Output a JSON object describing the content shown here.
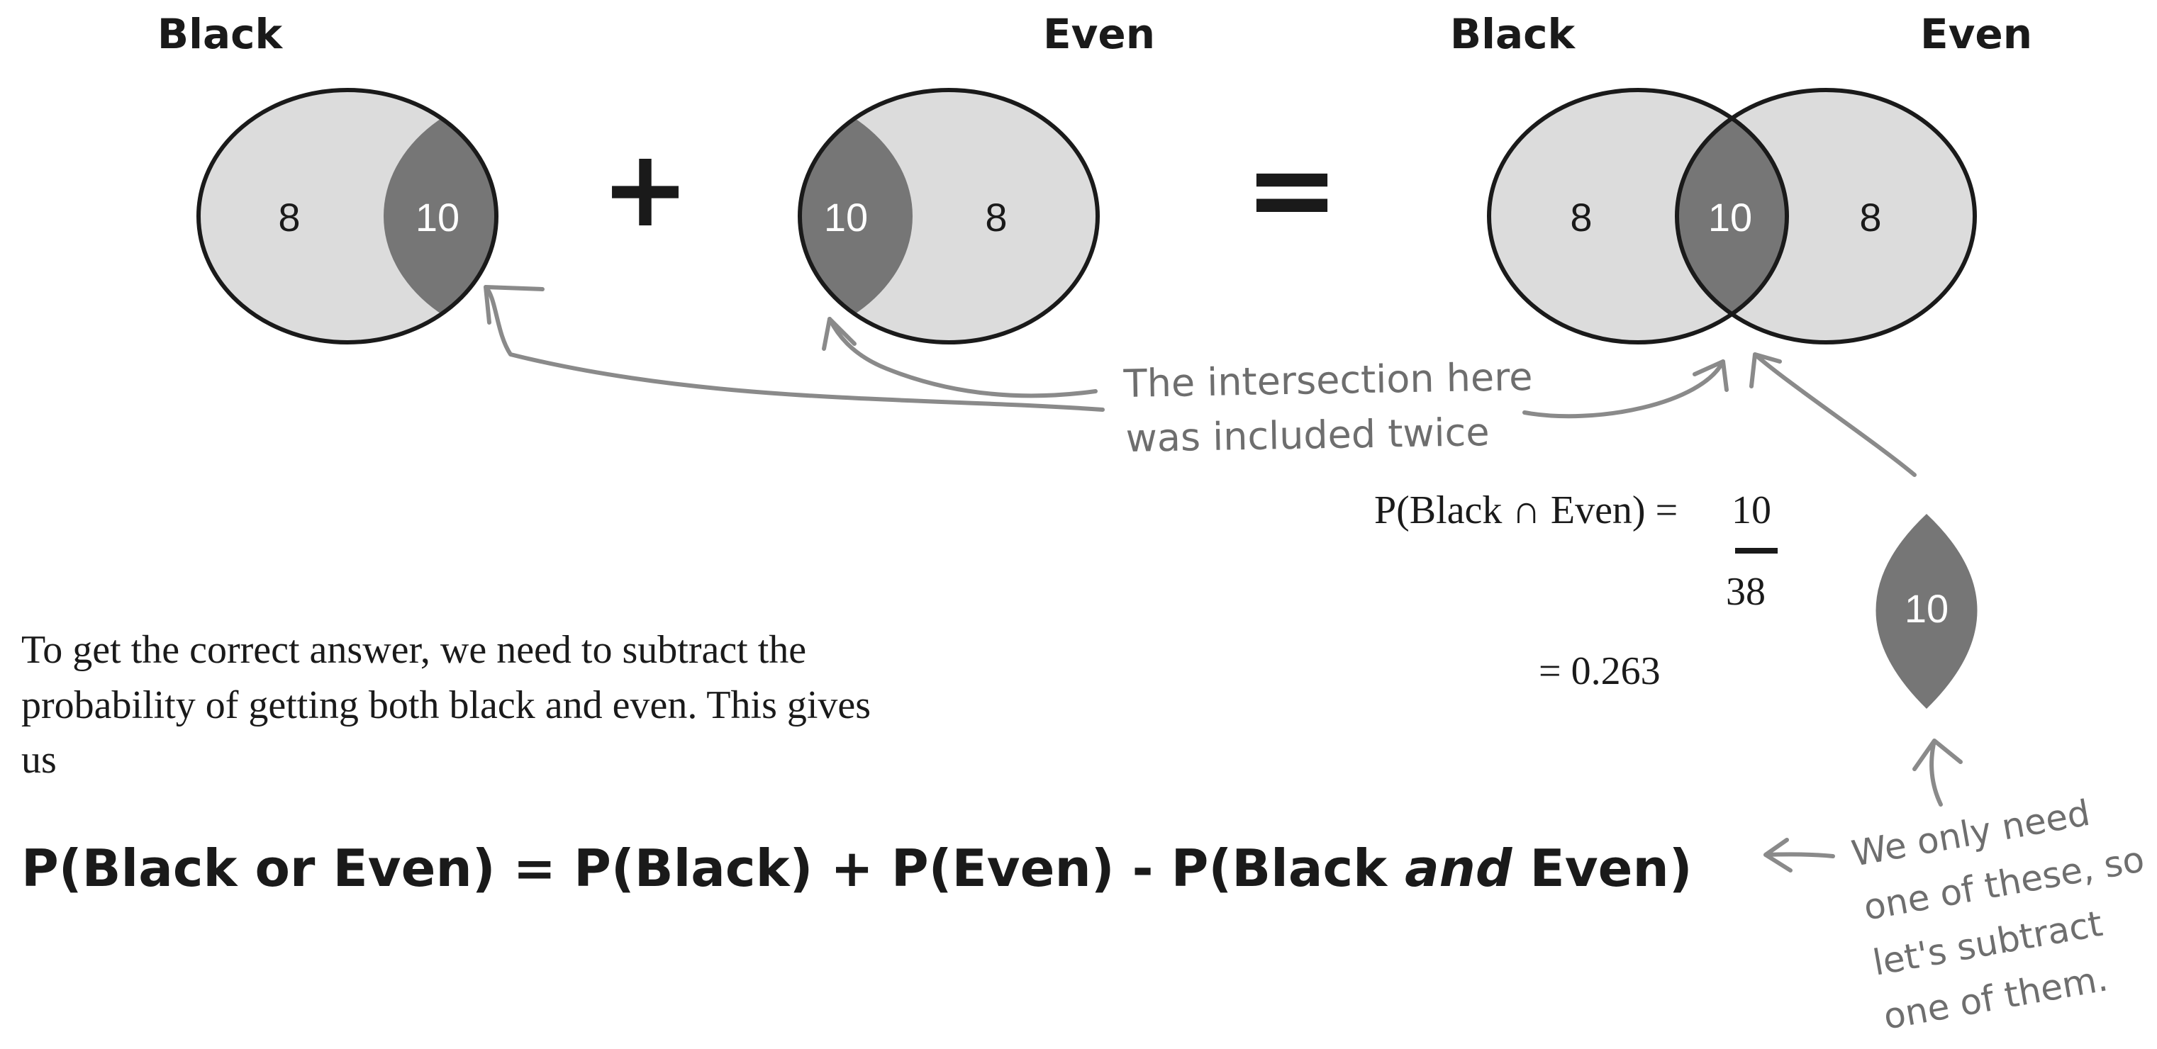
{
  "colors": {
    "light_region": "#dcdcdc",
    "dark_region": "#767676",
    "outline": "#1a1a1a",
    "annotation": "#8a8a8a"
  },
  "diagram1": {
    "label": "Black",
    "left_value": "8",
    "right_value": "10"
  },
  "plus_sign": "+",
  "diagram2": {
    "label": "Even",
    "left_value": "10",
    "right_value": "8"
  },
  "equals_sign": "=",
  "diagram3": {
    "label_left": "Black",
    "label_right": "Even",
    "left_value": "8",
    "middle_value": "10",
    "right_value": "8"
  },
  "annotation_twice": {
    "line1": "The intersection here",
    "line2": "was included twice"
  },
  "intersection_prob": {
    "lhs": "P(Black ∩ Even) = ",
    "numerator": "10",
    "denominator": "38",
    "result": "= 0.263"
  },
  "lens": {
    "value": "10"
  },
  "paragraph": {
    "line1": "To get the correct answer, we need to subtract the",
    "line2": "probability of getting both black and even. This gives",
    "line3": "us"
  },
  "formula": {
    "part1": "P(Black or Even) = P(Black) + P(Even) - P(Black ",
    "italic": "and",
    "part2": " Even)"
  },
  "annotation_subtract": {
    "line1": "We only need",
    "line2": "one of these, so",
    "line3": "let's subtract",
    "line4": "one of them."
  }
}
